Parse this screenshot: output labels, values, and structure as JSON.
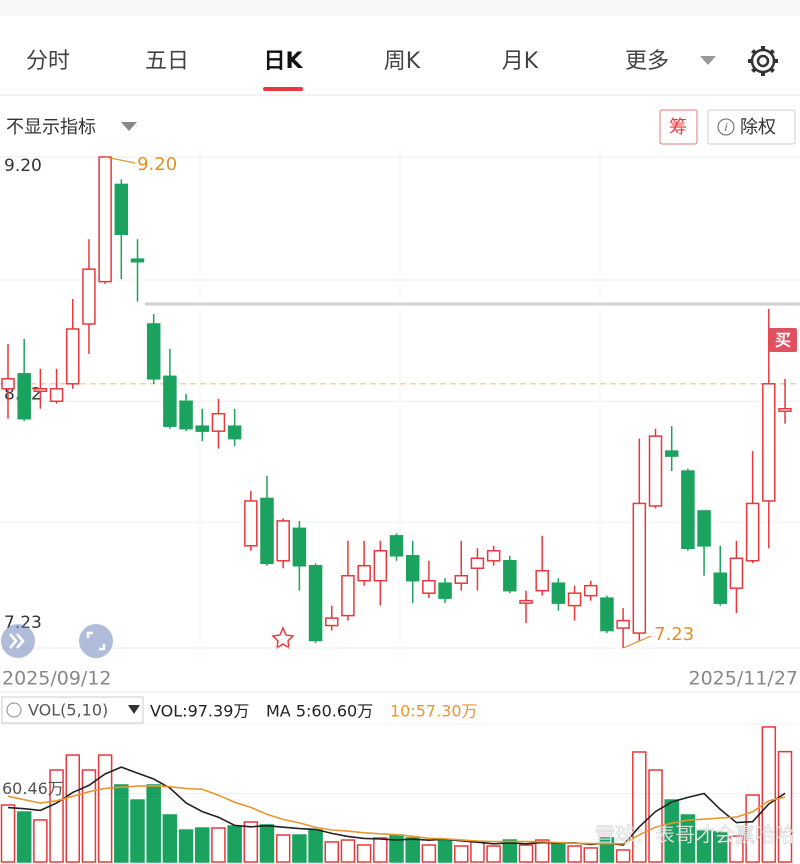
{
  "tabs": {
    "items": [
      "分时",
      "五日",
      "日K",
      "周K",
      "月K",
      "更多"
    ],
    "active": 2
  },
  "toolbar": {
    "indicator": "不显示指标",
    "chip": "筹",
    "adjust": "除权"
  },
  "watermark": "雪球：表哥才会赢哈哈",
  "chart_data": [
    {
      "type": "candlestick",
      "categories": [
        "2025/09/12",
        null,
        null,
        null,
        null,
        null,
        null,
        null,
        null,
        null,
        null,
        null,
        null,
        null,
        null,
        null,
        null,
        null,
        null,
        null,
        null,
        null,
        null,
        null,
        null,
        null,
        null,
        null,
        null,
        null,
        null,
        null,
        null,
        null,
        null,
        null,
        null,
        null,
        null,
        null,
        null,
        null,
        null,
        null,
        null,
        null,
        null,
        null,
        "2025/11/27"
      ],
      "open": [
        8.27,
        8.33,
        8.26,
        8.22,
        8.29,
        8.53,
        8.7,
        9.09,
        8.79,
        8.53,
        8.32,
        8.22,
        8.12,
        8.1,
        8.12,
        7.64,
        7.83,
        7.58,
        7.71,
        7.56,
        7.32,
        7.36,
        7.5,
        7.5,
        7.68,
        7.6,
        7.45,
        7.49,
        7.49,
        7.55,
        7.58,
        7.58,
        7.41,
        7.46,
        7.49,
        7.4,
        7.44,
        7.43,
        7.31,
        7.29,
        7.8,
        8.02,
        7.94,
        7.78,
        7.53,
        7.47,
        7.58,
        7.82,
        8.18
      ],
      "high": [
        8.45,
        8.47,
        8.35,
        8.35,
        8.63,
        8.87,
        9.2,
        9.11,
        8.87,
        8.57,
        8.43,
        8.25,
        8.19,
        8.23,
        8.19,
        7.86,
        7.92,
        7.75,
        7.74,
        7.57,
        7.4,
        7.66,
        7.66,
        7.66,
        7.69,
        7.66,
        7.58,
        7.51,
        7.66,
        7.63,
        7.64,
        7.6,
        7.46,
        7.68,
        7.51,
        7.48,
        7.5,
        7.44,
        7.39,
        8.07,
        8.11,
        8.12,
        7.95,
        7.78,
        7.64,
        7.66,
        8.02,
        8.59,
        8.31
      ],
      "low": [
        8.15,
        8.14,
        8.19,
        8.21,
        8.27,
        8.41,
        8.69,
        8.71,
        8.62,
        8.29,
        8.11,
        8.1,
        8.06,
        8.03,
        8.04,
        7.62,
        7.56,
        7.55,
        7.46,
        7.25,
        7.3,
        7.34,
        7.48,
        7.4,
        7.58,
        7.41,
        7.43,
        7.41,
        7.46,
        7.46,
        7.56,
        7.45,
        7.33,
        7.44,
        7.38,
        7.34,
        7.42,
        7.29,
        7.23,
        7.26,
        7.79,
        7.94,
        7.62,
        7.52,
        7.4,
        7.37,
        7.57,
        7.63,
        8.13
      ],
      "close": [
        8.31,
        8.15,
        8.27,
        8.27,
        8.51,
        8.75,
        9.2,
        8.89,
        8.78,
        8.31,
        8.12,
        8.11,
        8.1,
        8.17,
        8.07,
        7.82,
        7.57,
        7.74,
        7.56,
        7.26,
        7.35,
        7.52,
        7.56,
        7.62,
        7.6,
        7.5,
        7.5,
        7.43,
        7.52,
        7.59,
        7.62,
        7.46,
        7.42,
        7.54,
        7.41,
        7.45,
        7.48,
        7.3,
        7.34,
        7.81,
        8.08,
        8.0,
        7.63,
        7.64,
        7.41,
        7.59,
        7.81,
        8.29,
        8.19
      ],
      "up_color": "#e8383d",
      "down_color": "#1ba25e",
      "ylim": [
        7.23,
        9.2
      ],
      "yticks": [
        {
          "value": 9.2,
          "label": "9.20"
        },
        8.22,
        7.23
      ],
      "annotations": [
        {
          "text": "9.20",
          "value": 9.2,
          "index": 6
        },
        {
          "text": "7.23",
          "value": 7.23,
          "index": 38
        }
      ],
      "reference_lines": [
        {
          "value": 8.29,
          "style": "dashed",
          "color": "#efc48a"
        },
        {
          "value": 8.61,
          "style": "solid",
          "color": "#cfcfcf"
        }
      ],
      "signal": {
        "text": "买",
        "index": 48
      },
      "grid": true
    },
    {
      "type": "bar",
      "title": "VOL(5,10)",
      "values": [
        50.3,
        44.1,
        37.1,
        81.2,
        94.4,
        81.2,
        94.4,
        68.0,
        54.7,
        68.0,
        41.5,
        28.2,
        30.0,
        30.0,
        31.8,
        35.3,
        32.7,
        23.8,
        23.8,
        28.2,
        17.7,
        19.4,
        15.0,
        21.2,
        23.8,
        21.2,
        15.0,
        19.4,
        14.1,
        17.7,
        14.1,
        19.4,
        15.0,
        19.4,
        16.8,
        14.1,
        12.4,
        21.2,
        10.6,
        97.1,
        81.2,
        54.7,
        41.5,
        28.2,
        26.5,
        22.9,
        59.1,
        119.2,
        97.39
      ],
      "series": [
        {
          "color": "#222222",
          "values": [
            48.0,
            47.0,
            45.5,
            52.0,
            61.4,
            67.6,
            77.7,
            83.8,
            78.5,
            73.3,
            65.3,
            52.1,
            44.5,
            39.5,
            32.3,
            31.1,
            32.0,
            30.7,
            29.5,
            28.8,
            25.2,
            22.6,
            20.8,
            20.3,
            19.4,
            20.1,
            19.2,
            20.1,
            18.7,
            17.5,
            16.1,
            16.9,
            16.1,
            17.1,
            16.9,
            16.9,
            15.5,
            16.8,
            15.0,
            31.1,
            44.5,
            53.0,
            57.0,
            60.5,
            46.4,
            34.8,
            35.6,
            51.2,
            60.6
          ]
        },
        {
          "color": "#e8962e",
          "values": [
            58,
            55,
            52,
            54,
            58,
            62,
            65,
            66,
            67,
            67.3,
            66.5,
            64.9,
            64.2,
            59.0,
            52.8,
            48.2,
            42.0,
            37.6,
            34.5,
            30.5,
            28.2,
            27.3,
            25.8,
            24.9,
            24.1,
            22.7,
            20.9,
            20.5,
            19.5,
            18.5,
            18.1,
            18.1,
            18.1,
            17.9,
            17.2,
            16.5,
            16.2,
            16.4,
            16.1,
            24.0,
            30.7,
            34.3,
            36.9,
            37.8,
            38.8,
            39.6,
            44.3,
            54.1,
            57.3
          ]
        }
      ],
      "legend": [
        "VOL:97.39万",
        "MA 5:60.60万",
        "10:57.30万"
      ],
      "legend_colors": [
        "#222222",
        "#222222",
        "#e8962e"
      ],
      "ylim": [
        0,
        120.92
      ],
      "yticks": [
        {
          "value": 60.46,
          "label": "60.46万"
        }
      ]
    }
  ]
}
